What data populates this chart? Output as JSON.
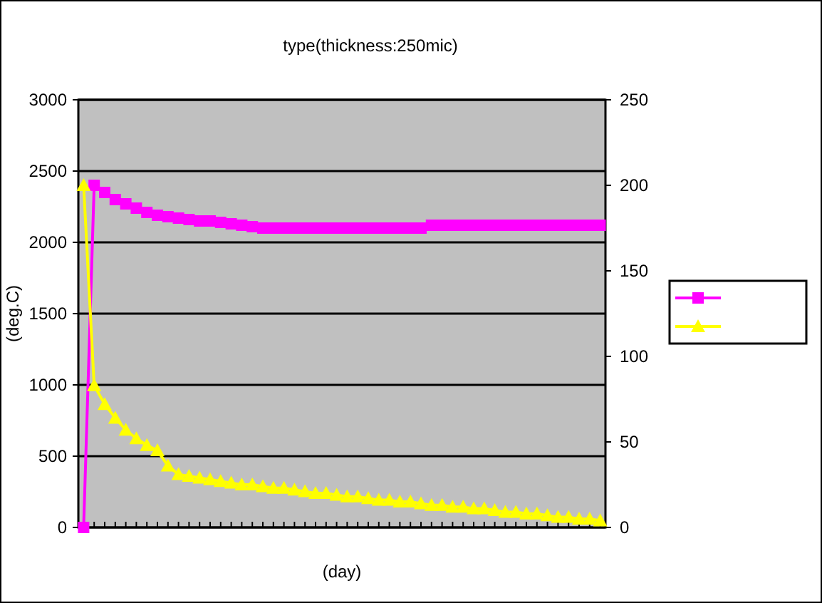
{
  "chart_data": {
    "type": "line",
    "title": "type(thickness:250mic)",
    "xlabel": "(day)",
    "ylabel": "(deg.C)",
    "categories": [
      null,
      null,
      null,
      null,
      null,
      null,
      null,
      null,
      null,
      null,
      null,
      null,
      null,
      null,
      null,
      null,
      null,
      null,
      null,
      null,
      null,
      null,
      null,
      null,
      null,
      null,
      null,
      null,
      null,
      null,
      null,
      null,
      null,
      null,
      null,
      null,
      null,
      null,
      null,
      null,
      null,
      null,
      null,
      null,
      null,
      null,
      null,
      null,
      null,
      null
    ],
    "series": [
      {
        "color": "#ff00ff",
        "marker": "square",
        "values": [
          0,
          2400,
          2350,
          2300,
          2270,
          2240,
          2210,
          2190,
          2180,
          2170,
          2160,
          2150,
          2150,
          2140,
          2130,
          2120,
          2110,
          2100,
          2100,
          2100,
          2100,
          2100,
          2100,
          2100,
          2100,
          2100,
          2100,
          2100,
          2100,
          2100,
          2100,
          2100,
          2100,
          2120,
          2120,
          2120,
          2120,
          2120,
          2120,
          2120,
          2120,
          2120,
          2120,
          2120,
          2120,
          2120,
          2120,
          2120,
          2120,
          2120
        ]
      },
      {
        "color": "#ffff00",
        "marker": "triangle",
        "axis": "y2",
        "values": [
          200,
          83,
          72,
          64,
          57,
          52,
          48,
          45,
          36,
          31,
          30,
          29,
          28,
          27,
          26,
          25,
          25,
          24,
          23,
          23,
          22,
          21,
          20,
          20,
          19,
          18,
          18,
          17,
          16,
          16,
          15,
          15,
          14,
          13,
          13,
          12,
          12,
          11,
          11,
          10,
          9,
          9,
          8,
          8,
          7,
          6,
          6,
          5,
          5,
          4
        ]
      }
    ],
    "ylim": [
      0,
      3000
    ],
    "yticks": [
      0,
      500,
      1000,
      1500,
      2000,
      2500,
      3000
    ],
    "y2lim": [
      0,
      250
    ],
    "y2ticks": [
      0,
      50,
      100,
      150,
      200,
      250
    ],
    "grid": "y"
  }
}
